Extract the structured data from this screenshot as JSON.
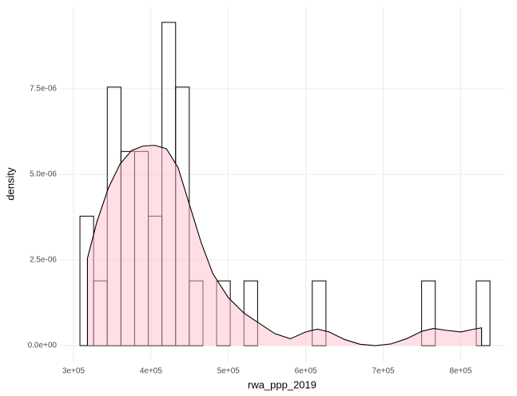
{
  "chart_data": {
    "type": "histogram",
    "x_label": "rwa_ppp_2019",
    "y_label": "density",
    "bins": [
      308300,
      325950,
      343600,
      361250,
      378900,
      396550,
      414200,
      431850,
      449500,
      467150,
      484800,
      502450,
      520100,
      537750,
      555400,
      573050,
      590700,
      608350,
      626000,
      643650,
      661300,
      678950,
      696600,
      714250,
      731900,
      749550,
      767200,
      784850,
      802500,
      820150,
      837800
    ],
    "values": [
      3.78e-06,
      1.89e-06,
      7.55e-06,
      5.67e-06,
      5.67e-06,
      3.78e-06,
      9.44e-06,
      7.55e-06,
      1.89e-06,
      0,
      1.89e-06,
      0,
      1.89e-06,
      0,
      0,
      0,
      0,
      1.89e-06,
      0,
      0,
      0,
      0,
      0,
      0,
      0,
      1.89e-06,
      0,
      0,
      0,
      1.89e-06
    ],
    "bar_fill": "#ffffff",
    "bar_edge": "#000000",
    "density": {
      "x": [
        318000,
        330000,
        345000,
        360000,
        375000,
        390000,
        405000,
        420000,
        435000,
        450000,
        465000,
        480000,
        500000,
        520000,
        540000,
        560000,
        580000,
        600000,
        615000,
        630000,
        650000,
        670000,
        690000,
        710000,
        730000,
        750000,
        765000,
        780000,
        800000,
        815000,
        827000
      ],
      "values": [
        2.55e-06,
        3.6e-06,
        4.6e-06,
        5.3e-06,
        5.7e-06,
        5.83e-06,
        5.85e-06,
        5.75e-06,
        5.2e-06,
        4.1e-06,
        3e-06,
        2.1e-06,
        1.4e-06,
        9.5e-07,
        6.5e-07,
        3.5e-07,
        2e-07,
        4e-07,
        4.8e-07,
        4e-07,
        1.8e-07,
        4e-08,
        0.0,
        5e-08,
        2e-07,
        4.2e-07,
        5e-07,
        4.5e-07,
        4e-07,
        4.7e-07,
        5.2e-07
      ],
      "fill": "#ffc0cb",
      "line_color": "#000000"
    },
    "xlim": [
      282460,
      857270
    ],
    "ylim": [
      -4.67e-07,
      9.907e-06
    ],
    "xticks": [
      {
        "value": 300000,
        "label": "3e+05"
      },
      {
        "value": 400000,
        "label": "4e+05"
      },
      {
        "value": 500000,
        "label": "5e+05"
      },
      {
        "value": 600000,
        "label": "6e+05"
      },
      {
        "value": 700000,
        "label": "7e+05"
      },
      {
        "value": 800000,
        "label": "8e+05"
      }
    ],
    "yticks": [
      {
        "value": 0,
        "label": "0.0e+00"
      },
      {
        "value": 2.5e-06,
        "label": "2.5e-06"
      },
      {
        "value": 5e-06,
        "label": "5.0e-06"
      },
      {
        "value": 7.5e-06,
        "label": "7.5e-06"
      }
    ],
    "grid": true
  }
}
